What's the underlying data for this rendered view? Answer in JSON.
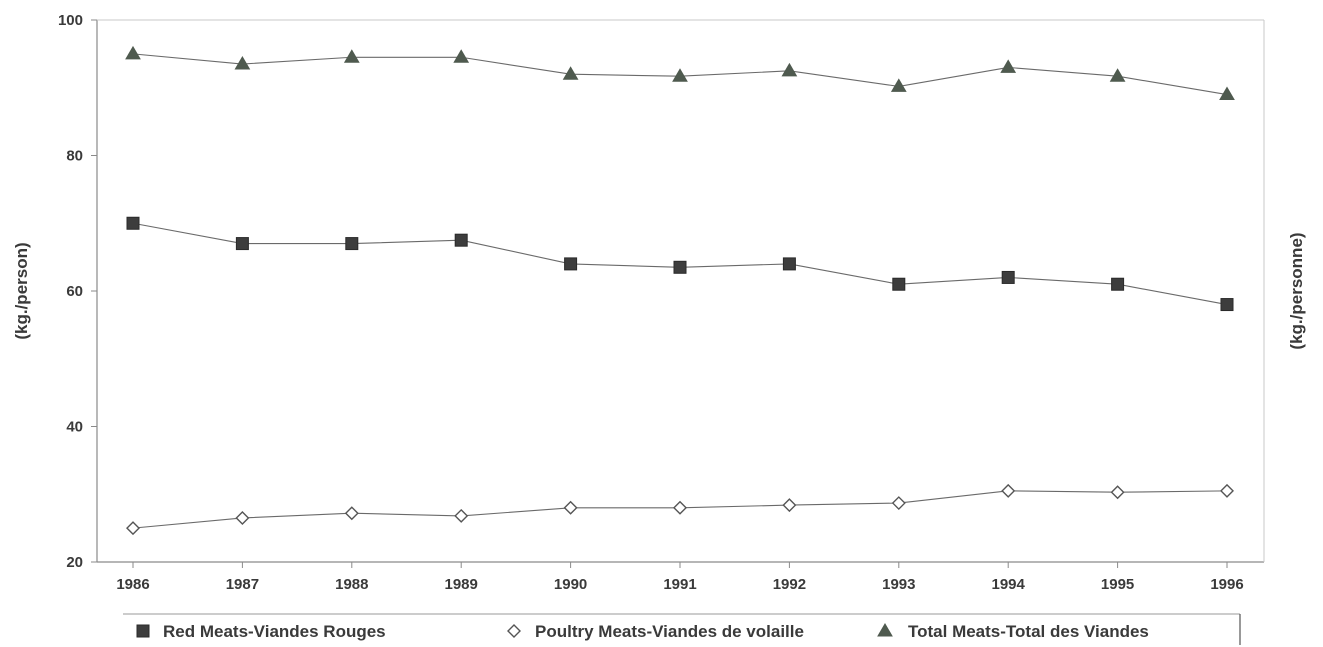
{
  "chart_data": {
    "type": "line",
    "x": [
      "1986",
      "1987",
      "1988",
      "1989",
      "1990",
      "1991",
      "1992",
      "1993",
      "1994",
      "1995",
      "1996"
    ],
    "ylim": [
      20,
      100
    ],
    "yticks": [
      20,
      40,
      60,
      80,
      100
    ],
    "ylabel": "(kg./person)",
    "ylabel_right": "(kg./personne)",
    "grid": false,
    "legend_position": "bottom",
    "series": [
      {
        "name": "Red Meats-Viandes Rouges",
        "marker": "square-filled",
        "color": "#3d3d3d",
        "values": [
          70.0,
          67.0,
          67.0,
          67.5,
          64.0,
          63.5,
          64.0,
          61.0,
          62.0,
          61.0,
          58.0
        ]
      },
      {
        "name": "Poultry Meats-Viandes de volaille",
        "marker": "diamond-open",
        "color": "#555555",
        "values": [
          25.0,
          26.5,
          27.2,
          26.8,
          28.0,
          28.0,
          28.4,
          28.7,
          30.5,
          30.3,
          30.5
        ]
      },
      {
        "name": "Total Meats-Total des Viandes",
        "marker": "triangle-filled",
        "color": "#4f5a4f",
        "values": [
          95.0,
          93.5,
          94.5,
          94.5,
          92.0,
          91.7,
          92.5,
          90.2,
          93.0,
          91.7,
          89.0
        ]
      }
    ]
  }
}
